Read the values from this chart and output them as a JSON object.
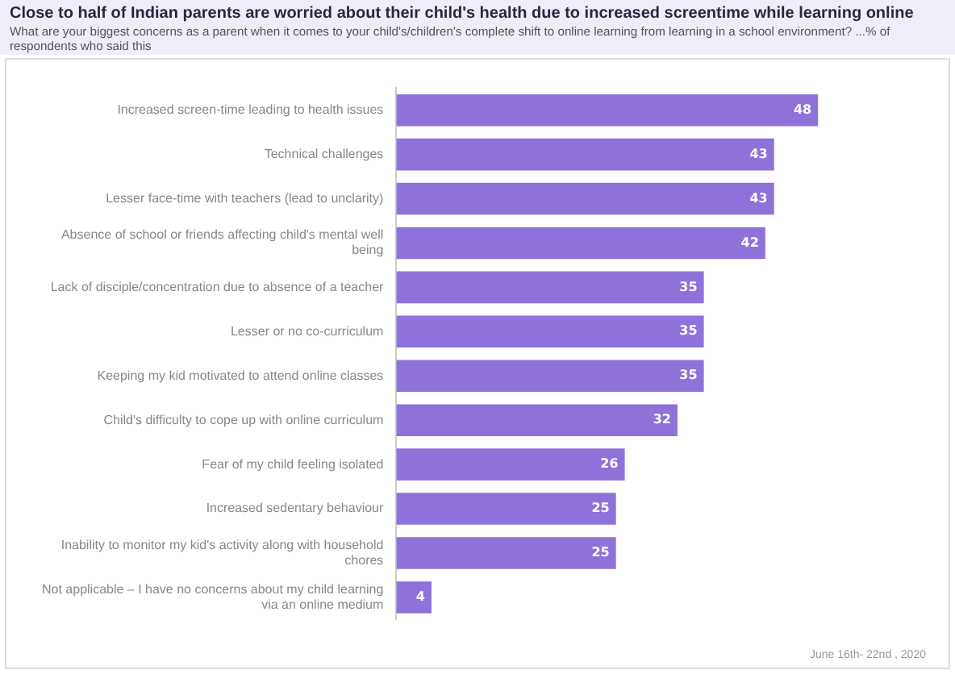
{
  "chart_data": {
    "type": "bar",
    "orientation": "horizontal",
    "title": "Close to half of Indian parents are worried about their child's health due to increased screentime while learning online",
    "subtitle": "What are your biggest concerns as a parent when it comes to your child's/children's complete shift to online learning from learning in a school environment? ...% of respondents who said this",
    "categories": [
      "Increased screen-time leading to health issues",
      "Technical challenges",
      "Lesser face-time with teachers (lead to unclarity)",
      "Absence of school or friends affecting child's mental well being",
      "Lack of disciple/concentration due to absence of a teacher",
      "Lesser or no co-curriculum",
      "Keeping my kid motivated to attend online classes",
      "Child's difficulty to cope up with online curriculum",
      "Fear of my child feeling isolated",
      "Increased sedentary behaviour",
      "Inability to monitor my kid's activity along with household chores",
      "Not applicable – I have no concerns about my child learning via an online medium"
    ],
    "values": [
      48,
      43,
      43,
      42,
      35,
      35,
      35,
      32,
      26,
      25,
      25,
      4
    ],
    "color": "#8e72d9",
    "data_labels": true,
    "grid": false,
    "legend": false,
    "annotations": [
      "June 16th- 22nd , 2020"
    ]
  }
}
